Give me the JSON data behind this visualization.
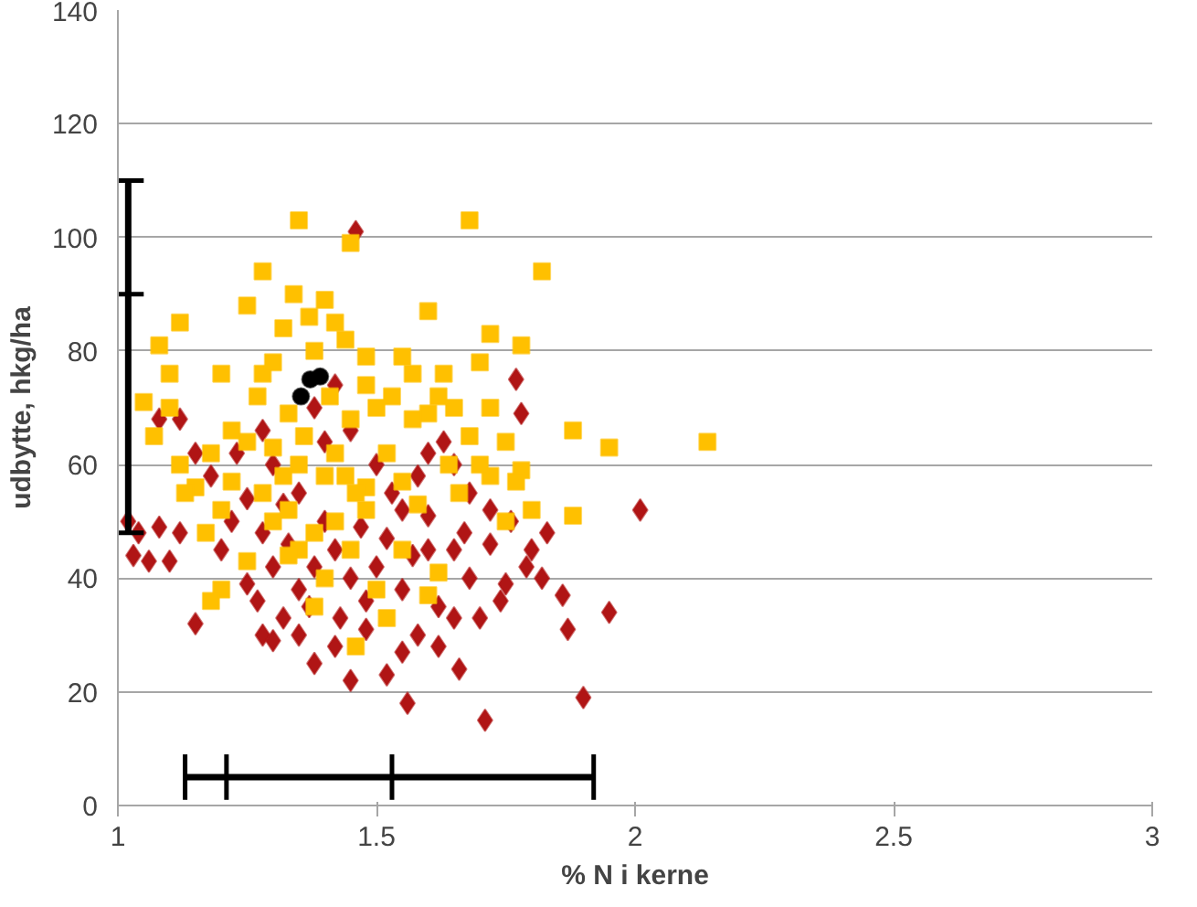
{
  "chart_data": {
    "type": "scatter",
    "xlabel": "% N i kerne",
    "ylabel": "udbytte, hkg/ha",
    "xlim": [
      1,
      3
    ],
    "ylim": [
      0,
      140
    ],
    "xticks": [
      1,
      1.5,
      2,
      2.5,
      3
    ],
    "yticks": [
      0,
      20,
      40,
      60,
      80,
      100,
      120,
      140
    ],
    "grid": "y",
    "series": [
      {
        "color": "#b01515",
        "marker": "diamond",
        "x": [
          1.46,
          1.77,
          1.78,
          1.83,
          1.86,
          2.01,
          1.95,
          1.9,
          1.87,
          1.71,
          1.56,
          1.66,
          1.45,
          1.02,
          1.04,
          1.03,
          1.06,
          1.08,
          1.1,
          1.12,
          1.15,
          1.2,
          1.25,
          1.28,
          1.3,
          1.32,
          1.35,
          1.38,
          1.42,
          1.48,
          1.52,
          1.55,
          1.58,
          1.62,
          1.65,
          1.7,
          1.75,
          1.79,
          1.82,
          1.8,
          1.76,
          1.72,
          1.68,
          1.65,
          1.63,
          1.6,
          1.58,
          1.55,
          1.52,
          1.5,
          1.48,
          1.45,
          1.42,
          1.4,
          1.38,
          1.35,
          1.33,
          1.3,
          1.27,
          1.25,
          1.22,
          1.18,
          1.15,
          1.12,
          1.08,
          1.3,
          1.35,
          1.4,
          1.45,
          1.5,
          1.55,
          1.6,
          1.62,
          1.68,
          1.72,
          1.74,
          1.67,
          1.57,
          1.43,
          1.37,
          1.47,
          1.53,
          1.28,
          1.32,
          1.23,
          1.38,
          1.42,
          1.28,
          1.6,
          1.65
        ],
        "values": [
          101,
          75,
          69,
          48,
          37,
          52,
          34,
          19,
          31,
          15,
          18,
          24,
          22,
          50,
          48,
          44,
          43,
          49,
          43,
          48,
          32,
          45,
          39,
          30,
          29,
          33,
          30,
          25,
          28,
          31,
          23,
          27,
          30,
          28,
          33,
          33,
          39,
          42,
          40,
          45,
          50,
          52,
          55,
          60,
          64,
          62,
          58,
          52,
          47,
          42,
          36,
          40,
          45,
          50,
          42,
          38,
          46,
          42,
          36,
          54,
          50,
          58,
          62,
          68,
          68,
          60,
          55,
          64,
          66,
          60,
          38,
          45,
          35,
          40,
          46,
          36,
          48,
          44,
          33,
          35,
          49,
          55,
          48,
          53,
          62,
          70,
          74,
          66,
          51,
          45
        ]
      },
      {
        "color": "#ffc000",
        "marker": "square",
        "x": [
          1.35,
          1.68,
          1.45,
          1.82,
          1.28,
          1.78,
          1.44,
          1.48,
          1.6,
          1.34,
          1.4,
          1.32,
          1.37,
          1.25,
          1.42,
          1.12,
          1.08,
          1.1,
          1.2,
          1.28,
          1.3,
          1.38,
          1.55,
          1.57,
          1.63,
          1.7,
          1.72,
          1.65,
          1.62,
          1.53,
          1.5,
          1.48,
          1.45,
          1.72,
          1.75,
          1.68,
          1.6,
          1.57,
          1.88,
          1.95,
          2.14,
          1.78,
          1.77,
          1.72,
          1.8,
          1.88,
          1.75,
          1.64,
          1.55,
          1.48,
          1.42,
          1.4,
          1.35,
          1.3,
          1.25,
          1.22,
          1.18,
          1.12,
          1.05,
          1.1,
          1.07,
          1.15,
          1.2,
          1.13,
          1.17,
          1.22,
          1.28,
          1.3,
          1.33,
          1.38,
          1.42,
          1.45,
          1.48,
          1.35,
          1.25,
          1.2,
          1.18,
          1.33,
          1.4,
          1.5,
          1.62,
          1.6,
          1.38,
          1.52,
          1.46,
          1.36,
          1.44,
          1.52,
          1.58,
          1.66,
          1.7,
          1.55,
          1.46,
          1.27,
          1.33,
          1.41,
          1.32
        ],
        "values": [
          103,
          103,
          99,
          94,
          94,
          81,
          82,
          79,
          87,
          90,
          89,
          84,
          86,
          88,
          85,
          85,
          81,
          76,
          76,
          76,
          78,
          80,
          79,
          76,
          76,
          78,
          83,
          70,
          72,
          72,
          70,
          74,
          68,
          70,
          64,
          65,
          69,
          68,
          66,
          63,
          64,
          59,
          57,
          58,
          52,
          51,
          50,
          60,
          57,
          56,
          62,
          58,
          60,
          63,
          64,
          66,
          62,
          60,
          71,
          70,
          65,
          56,
          52,
          55,
          48,
          57,
          55,
          50,
          52,
          48,
          50,
          45,
          52,
          45,
          43,
          38,
          36,
          44,
          40,
          38,
          41,
          37,
          35,
          33,
          55,
          65,
          58,
          62,
          53,
          55,
          60,
          45,
          28,
          72,
          69,
          72,
          58
        ]
      },
      {
        "color": "#000000",
        "marker": "circle",
        "x": [
          1.354,
          1.372,
          1.391
        ],
        "values": [
          72,
          75,
          75.5
        ]
      },
      {
        "type": "line",
        "color": "#000000",
        "x": [
          1.13,
          1.21,
          1.53,
          1.92
        ],
        "values": [
          5,
          5,
          5,
          5
        ],
        "errors": [
          4,
          4,
          4,
          4
        ]
      },
      {
        "type": "line",
        "color": "#000000",
        "x": [
          1.02,
          1.02,
          1.02
        ],
        "values": [
          48,
          90,
          110
        ],
        "xerrors": [
          0.03,
          0.03,
          0.03
        ]
      }
    ]
  }
}
